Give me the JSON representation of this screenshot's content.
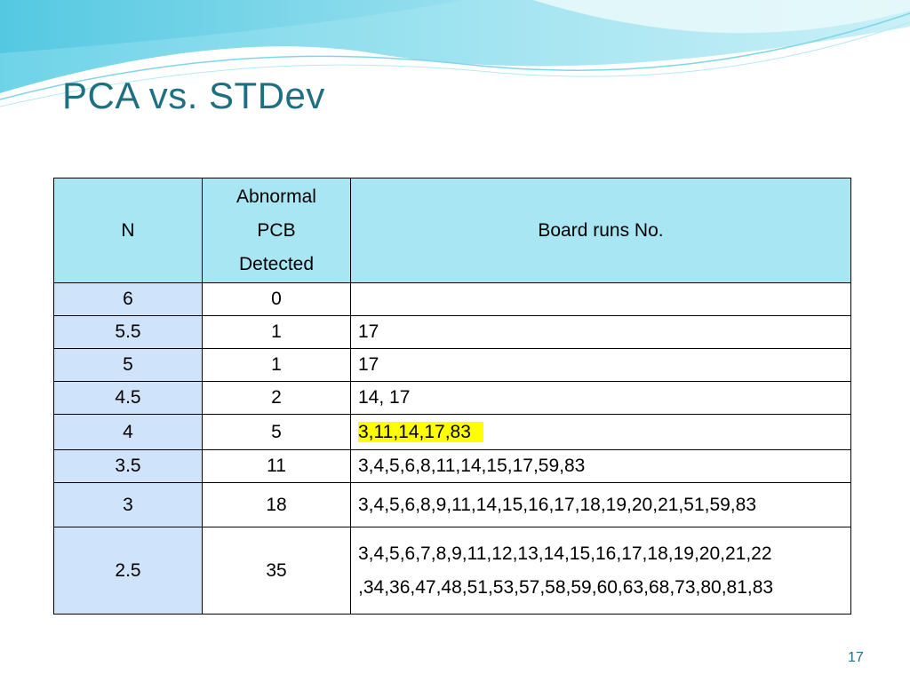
{
  "slide": {
    "title": "PCA vs. STDev",
    "page_number": "17",
    "accent_color": "#1f6f82",
    "header_fill": "#a8e6f3",
    "first_col_fill": "#cfe3fb",
    "highlight_color": "#ffff00"
  },
  "table": {
    "headers": {
      "n": "N",
      "abnormal_line1": "Abnormal",
      "abnormal_line2": "PCB",
      "abnormal_line3": "Detected",
      "runs": "Board runs No."
    },
    "rows": [
      {
        "n": "6",
        "count": "0",
        "runs": ""
      },
      {
        "n": "5.5",
        "count": "1",
        "runs": "17"
      },
      {
        "n": "5",
        "count": "1",
        "runs": "17"
      },
      {
        "n": "4.5",
        "count": "2",
        "runs": "14, 17"
      },
      {
        "n": "4",
        "count": "5",
        "runs": "3,11,14,17,83"
      },
      {
        "n": "3.5",
        "count": "11",
        "runs": "3,4,5,6,8,11,14,15,17,59,83"
      },
      {
        "n": "3",
        "count": "18",
        "runs": "3,4,5,6,8,9,11,14,15,16,17,18,19,20,21,51,59,83"
      },
      {
        "n": "2.5",
        "count": "35",
        "runs_line1": "3,4,5,6,7,8,9,11,12,13,14,15,16,17,18,19,20,21,22",
        "runs_line2": ",34,36,47,48,51,53,57,58,59,60,63,68,73,80,81,83"
      }
    ]
  }
}
